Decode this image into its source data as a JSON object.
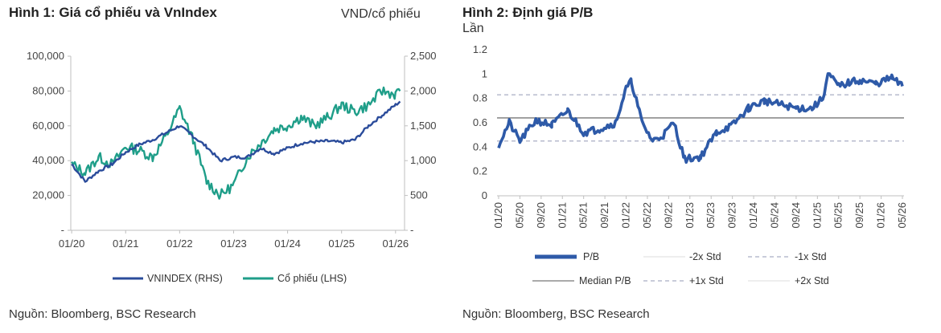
{
  "chart_data": [
    {
      "type": "line",
      "title": "Hình 1: Giá cổ phiếu và VnIndex",
      "unit_label": "VND/cổ phiếu",
      "x_ticks": [
        "01/20",
        "01/21",
        "01/22",
        "01/23",
        "01/24",
        "01/25",
        "01/26"
      ],
      "y_left_ticks": [
        "100,000",
        "80,000",
        "60,000",
        "40,000",
        "20,000",
        "-"
      ],
      "y_right_ticks": [
        "2,500",
        "2,000",
        "1,500",
        "1,000",
        "500",
        "-"
      ],
      "ylim_left": [
        0,
        100000
      ],
      "ylim_right": [
        0,
        2500
      ],
      "grid": false,
      "legend_position": "bottom",
      "series": [
        {
          "name": "VNINDEX (RHS)",
          "axis": "right",
          "color": "#2b4c9b",
          "x": [
            "2020-01",
            "2020-04",
            "2020-07",
            "2020-10",
            "2021-01",
            "2021-04",
            "2021-07",
            "2021-10",
            "2022-01",
            "2022-04",
            "2022-07",
            "2022-10",
            "2023-01",
            "2023-04",
            "2023-07",
            "2023-10",
            "2024-01",
            "2024-04",
            "2024-07",
            "2024-10",
            "2025-01",
            "2025-04",
            "2025-07",
            "2025-10",
            "2026-01",
            "2026-02"
          ],
          "values": [
            950,
            700,
            850,
            950,
            1120,
            1230,
            1300,
            1400,
            1500,
            1350,
            1200,
            1000,
            1050,
            1050,
            1180,
            1100,
            1180,
            1250,
            1270,
            1280,
            1260,
            1300,
            1500,
            1650,
            1800,
            1850
          ]
        },
        {
          "name": "Cổ phiếu (LHS)",
          "axis": "left",
          "color": "#1f9e89",
          "x": [
            "2020-01",
            "2020-04",
            "2020-07",
            "2020-10",
            "2021-01",
            "2021-04",
            "2021-07",
            "2021-10",
            "2022-01",
            "2022-04",
            "2022-07",
            "2022-10",
            "2023-01",
            "2023-04",
            "2023-07",
            "2023-10",
            "2024-01",
            "2024-04",
            "2024-07",
            "2024-10",
            "2025-01",
            "2025-04",
            "2025-07",
            "2025-10",
            "2026-01",
            "2026-02"
          ],
          "values": [
            38000,
            33000,
            42000,
            38000,
            48000,
            46000,
            42000,
            54000,
            70000,
            52000,
            28000,
            20000,
            26000,
            42000,
            50000,
            58000,
            60000,
            65000,
            60000,
            65000,
            72000,
            68000,
            72000,
            80000,
            78000,
            80000
          ]
        }
      ],
      "source": "Nguồn: Bloomberg, BSC Research"
    },
    {
      "type": "line",
      "title": "Hình 2: Định giá P/B",
      "unit_label": "Lần",
      "x_ticks": [
        "01/20",
        "05/20",
        "09/20",
        "01/21",
        "05/21",
        "09/21",
        "01/22",
        "05/22",
        "09/22",
        "01/23",
        "05/23",
        "09/23",
        "01/24",
        "05/24",
        "09/24",
        "01/25",
        "05/25",
        "09/25",
        "01/26",
        "05/26"
      ],
      "y_ticks": [
        "1.2",
        "1",
        "0.8",
        "0.6",
        "0.4",
        "0.2",
        "0"
      ],
      "ylim": [
        0,
        1.2
      ],
      "grid": false,
      "legend_position": "bottom",
      "series": [
        {
          "name": "P/B",
          "color": "#2e5aa8",
          "x": [
            "2020-01",
            "2020-03",
            "2020-05",
            "2020-08",
            "2020-11",
            "2021-02",
            "2021-05",
            "2021-08",
            "2021-11",
            "2022-01",
            "2022-02",
            "2022-04",
            "2022-06",
            "2022-08",
            "2022-10",
            "2022-12",
            "2023-03",
            "2023-06",
            "2023-09",
            "2023-12",
            "2024-03",
            "2024-06",
            "2024-09",
            "2024-12",
            "2025-02",
            "2025-03",
            "2025-05",
            "2025-07",
            "2025-09",
            "2025-12",
            "2026-03",
            "2026-05"
          ],
          "values": [
            0.42,
            0.6,
            0.45,
            0.62,
            0.58,
            0.7,
            0.52,
            0.55,
            0.6,
            0.88,
            0.94,
            0.6,
            0.45,
            0.5,
            0.6,
            0.3,
            0.32,
            0.52,
            0.58,
            0.72,
            0.78,
            0.75,
            0.72,
            0.72,
            0.8,
            1.0,
            0.9,
            0.93,
            0.95,
            0.92,
            0.97,
            0.9
          ]
        },
        {
          "name": "-2x Std",
          "color": "#dcdcdc",
          "style": "solid-thin",
          "value": null
        },
        {
          "name": "-1x Std",
          "color": "#a9adc4",
          "style": "dashed",
          "value": 0.45
        },
        {
          "name": "Median P/B",
          "color": "#777777",
          "style": "solid",
          "value": 0.64
        },
        {
          "name": "+1x Std",
          "color": "#a9adc4",
          "style": "dashed",
          "value": 0.83
        },
        {
          "name": "+2x Std",
          "color": "#dcdcdc",
          "style": "solid-thin",
          "value": null
        }
      ],
      "source": "Nguồn: Bloomberg, BSC Research"
    }
  ]
}
